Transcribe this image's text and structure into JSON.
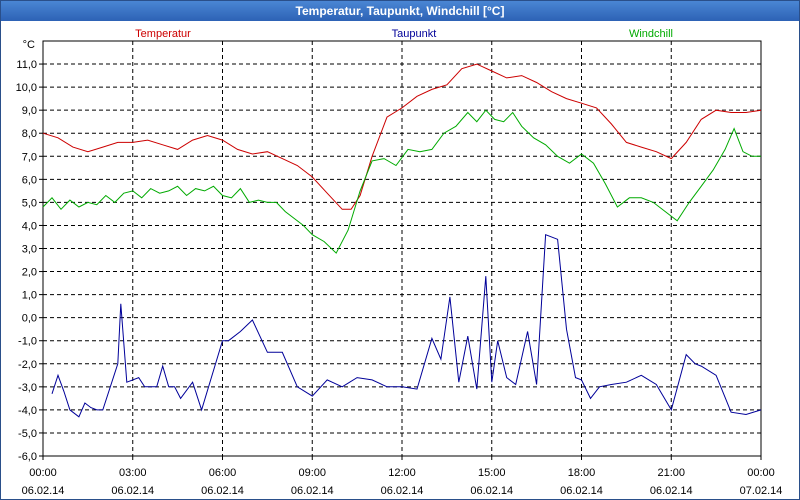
{
  "window": {
    "title": "Temperatur, Taupunkt, Windchill [°C]"
  },
  "chart_data": {
    "type": "line",
    "title": "Temperatur, Taupunkt, Windchill [°C]",
    "ylabel": "°C",
    "ylim": [
      -6,
      12
    ],
    "xlim": [
      0,
      24
    ],
    "grid": true,
    "yticks": [
      "11,0",
      "10,0",
      "9,0",
      "8,0",
      "7,0",
      "6,0",
      "5,0",
      "4,0",
      "3,0",
      "2,0",
      "1,0",
      "0,0",
      "-1,0",
      "-2,0",
      "-3,0",
      "-4,0",
      "-5,0",
      "-6,0"
    ],
    "xticks": [
      {
        "time": "00:00",
        "date": "06.02.14"
      },
      {
        "time": "03:00",
        "date": "06.02.14"
      },
      {
        "time": "06:00",
        "date": "06.02.14"
      },
      {
        "time": "09:00",
        "date": "06.02.14"
      },
      {
        "time": "12:00",
        "date": "06.02.14"
      },
      {
        "time": "15:00",
        "date": "06.02.14"
      },
      {
        "time": "18:00",
        "date": "06.02.14"
      },
      {
        "time": "21:00",
        "date": "06.02.14"
      },
      {
        "time": "00:00",
        "date": "07.02.14"
      }
    ],
    "series": [
      {
        "name": "Temperatur",
        "color": "#cc0000",
        "legend_pos": "left",
        "x": [
          0,
          0.5,
          1,
          1.5,
          2,
          2.5,
          3,
          3.5,
          4,
          4.5,
          5,
          5.5,
          6,
          6.5,
          7,
          7.5,
          8,
          8.5,
          9,
          9.5,
          10,
          10.3,
          10.6,
          11,
          11.5,
          12,
          12.5,
          13,
          13.5,
          14,
          14.5,
          15,
          15.5,
          16,
          16.5,
          17,
          17.5,
          18,
          18.5,
          19,
          19.5,
          20,
          20.5,
          21,
          21.5,
          22,
          22.5,
          23,
          23.5,
          24
        ],
        "values": [
          8.0,
          7.8,
          7.4,
          7.2,
          7.4,
          7.6,
          7.6,
          7.7,
          7.5,
          7.3,
          7.7,
          7.9,
          7.7,
          7.3,
          7.1,
          7.2,
          6.9,
          6.6,
          6.1,
          5.4,
          4.7,
          4.7,
          5.3,
          7.0,
          8.7,
          9.1,
          9.6,
          9.9,
          10.1,
          10.8,
          11.0,
          10.7,
          10.4,
          10.5,
          10.2,
          9.8,
          9.5,
          9.3,
          9.1,
          8.4,
          7.6,
          7.4,
          7.2,
          6.9,
          7.6,
          8.6,
          9.0,
          8.9,
          8.9,
          9.0
        ]
      },
      {
        "name": "Taupunkt",
        "color": "#000099",
        "legend_pos": "center",
        "x": [
          0.3,
          0.5,
          0.7,
          0.9,
          1.2,
          1.4,
          1.6,
          1.8,
          2.0,
          2.5,
          2.6,
          2.8,
          3.2,
          3.4,
          3.6,
          3.8,
          4.0,
          4.2,
          4.4,
          4.6,
          5.0,
          5.3,
          6.0,
          6.2,
          6.6,
          7.0,
          7.5,
          8.0,
          8.5,
          9.0,
          9.5,
          10.0,
          10.5,
          11.0,
          11.5,
          12.0,
          12.5,
          13.0,
          13.3,
          13.6,
          13.9,
          14.2,
          14.5,
          14.8,
          15.0,
          15.2,
          15.5,
          15.8,
          16.2,
          16.5,
          16.8,
          17.2,
          17.5,
          17.8,
          18.0,
          18.3,
          18.6,
          19.0,
          19.5,
          20.0,
          20.5,
          21.0,
          21.5,
          21.8,
          22.0,
          22.5,
          23.0,
          23.5,
          24
        ],
        "values": [
          -3.3,
          -2.5,
          -3.2,
          -4.0,
          -4.3,
          -3.7,
          -3.9,
          -4.0,
          -4.0,
          -2.0,
          0.6,
          -2.8,
          -2.6,
          -3.0,
          -3.0,
          -3.0,
          -2.1,
          -3.0,
          -3.0,
          -3.5,
          -2.8,
          -4.0,
          -1.0,
          -1.0,
          -0.6,
          -0.1,
          -1.5,
          -1.5,
          -3.0,
          -3.4,
          -2.7,
          -3.0,
          -2.6,
          -2.7,
          -3.0,
          -3.0,
          -3.1,
          -0.9,
          -1.8,
          0.9,
          -2.8,
          -0.8,
          -3.1,
          1.8,
          -2.8,
          -1.0,
          -2.6,
          -2.9,
          -0.6,
          -2.9,
          3.6,
          3.4,
          -0.5,
          -2.6,
          -2.7,
          -3.5,
          -3.0,
          -2.9,
          -2.8,
          -2.5,
          -2.9,
          -4.0,
          -1.6,
          -2.0,
          -2.1,
          -2.5,
          -4.1,
          -4.2,
          -4.0
        ]
      },
      {
        "name": "Windchill",
        "color": "#00aa00",
        "legend_pos": "right",
        "x": [
          0,
          0.3,
          0.6,
          0.9,
          1.2,
          1.5,
          1.8,
          2.1,
          2.4,
          2.7,
          3.0,
          3.3,
          3.6,
          3.9,
          4.2,
          4.5,
          4.8,
          5.1,
          5.4,
          5.7,
          6.0,
          6.3,
          6.6,
          6.9,
          7.2,
          7.5,
          7.8,
          8.1,
          8.4,
          8.7,
          9.0,
          9.4,
          9.8,
          10.2,
          10.6,
          11.0,
          11.4,
          11.8,
          12.2,
          12.6,
          13.0,
          13.4,
          13.8,
          14.2,
          14.5,
          14.8,
          15.1,
          15.4,
          15.7,
          16.0,
          16.4,
          16.8,
          17.2,
          17.6,
          18.0,
          18.4,
          18.8,
          19.2,
          19.6,
          20.0,
          20.4,
          20.8,
          21.2,
          21.6,
          22.0,
          22.4,
          22.8,
          23.1,
          23.4,
          23.7,
          24
        ],
        "values": [
          4.8,
          5.2,
          4.7,
          5.1,
          4.8,
          5.0,
          4.9,
          5.3,
          5.0,
          5.4,
          5.5,
          5.2,
          5.6,
          5.4,
          5.5,
          5.7,
          5.3,
          5.6,
          5.5,
          5.7,
          5.3,
          5.2,
          5.6,
          5.0,
          5.1,
          5.0,
          5.0,
          4.6,
          4.3,
          4.0,
          3.6,
          3.3,
          2.8,
          3.8,
          5.5,
          6.8,
          6.9,
          6.6,
          7.3,
          7.2,
          7.3,
          8.0,
          8.3,
          8.9,
          8.5,
          9.0,
          8.6,
          8.5,
          8.9,
          8.3,
          7.8,
          7.5,
          7.0,
          6.7,
          7.1,
          6.7,
          5.8,
          4.8,
          5.2,
          5.2,
          5.0,
          4.6,
          4.2,
          5.0,
          5.7,
          6.4,
          7.3,
          8.2,
          7.2,
          7.0,
          7.0
        ]
      }
    ]
  }
}
